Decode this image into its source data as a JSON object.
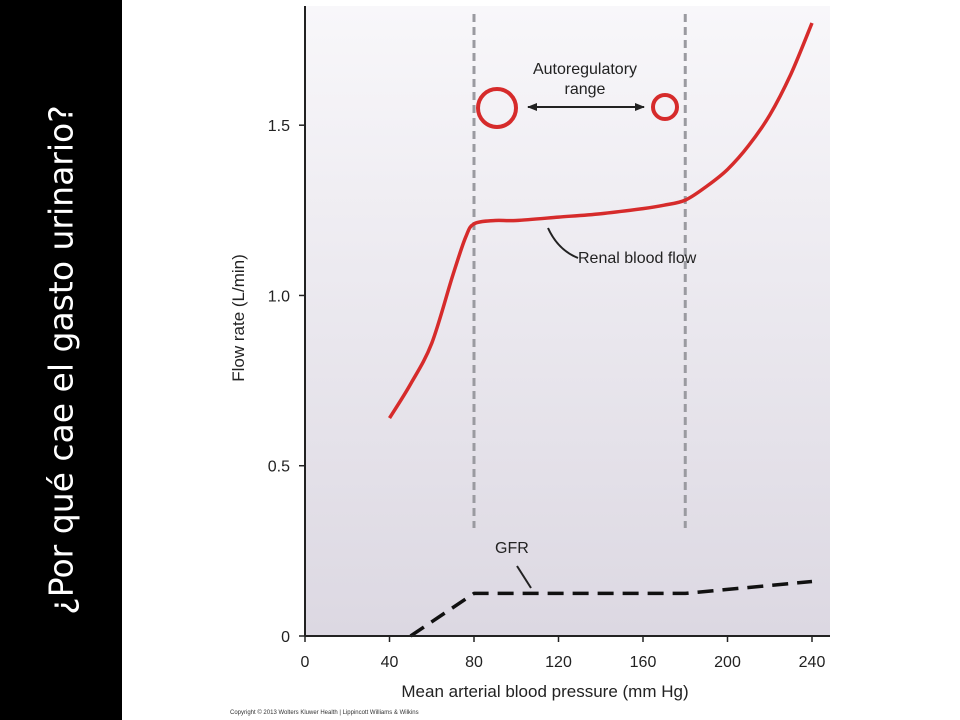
{
  "slide": {
    "side_title": "¿Por qué cae el gasto urinario?",
    "background_color": "#000000",
    "title_color": "#ffffff"
  },
  "chart_data": {
    "type": "line",
    "xlabel": "Mean arterial blood pressure (mm Hg)",
    "ylabel": "Flow rate (L/min)",
    "xlim": [
      0,
      240
    ],
    "ylim": [
      0,
      1.85
    ],
    "x_ticks": [
      0,
      40,
      80,
      120,
      160,
      200,
      240
    ],
    "y_ticks": [
      0,
      0.5,
      1.0,
      1.5
    ],
    "x_tick_labels": [
      "0",
      "40",
      "80",
      "120",
      "160",
      "200",
      "240"
    ],
    "y_tick_labels": [
      "0",
      "0.5",
      "1.0",
      "1.5"
    ],
    "grid": false,
    "reference_lines_x": [
      80,
      180
    ],
    "series": [
      {
        "name": "Renal blood flow",
        "color": "#d62b2b",
        "style": "solid",
        "x": [
          40,
          50,
          60,
          70,
          76,
          80,
          90,
          100,
          120,
          140,
          160,
          170,
          180,
          190,
          200,
          210,
          220,
          230,
          240
        ],
        "y": [
          0.64,
          0.74,
          0.86,
          1.06,
          1.17,
          1.21,
          1.22,
          1.22,
          1.23,
          1.24,
          1.255,
          1.265,
          1.28,
          1.32,
          1.37,
          1.44,
          1.53,
          1.65,
          1.8
        ]
      },
      {
        "name": "GFR",
        "color": "#111111",
        "style": "dashed",
        "x": [
          50,
          80,
          180,
          240
        ],
        "y": [
          0.0,
          0.125,
          0.125,
          0.16
        ]
      }
    ],
    "annotations": [
      {
        "text_lines": [
          "Autoregulatory",
          "range"
        ]
      },
      {
        "text": "Renal blood flow"
      },
      {
        "text": "GFR"
      }
    ],
    "footer": "Copyright © 2013 Wolters Kluwer Health | Lippincott Williams & Wilkins",
    "plot_background_colors": [
      "#f8f7fa",
      "#dcd8e2"
    ]
  }
}
